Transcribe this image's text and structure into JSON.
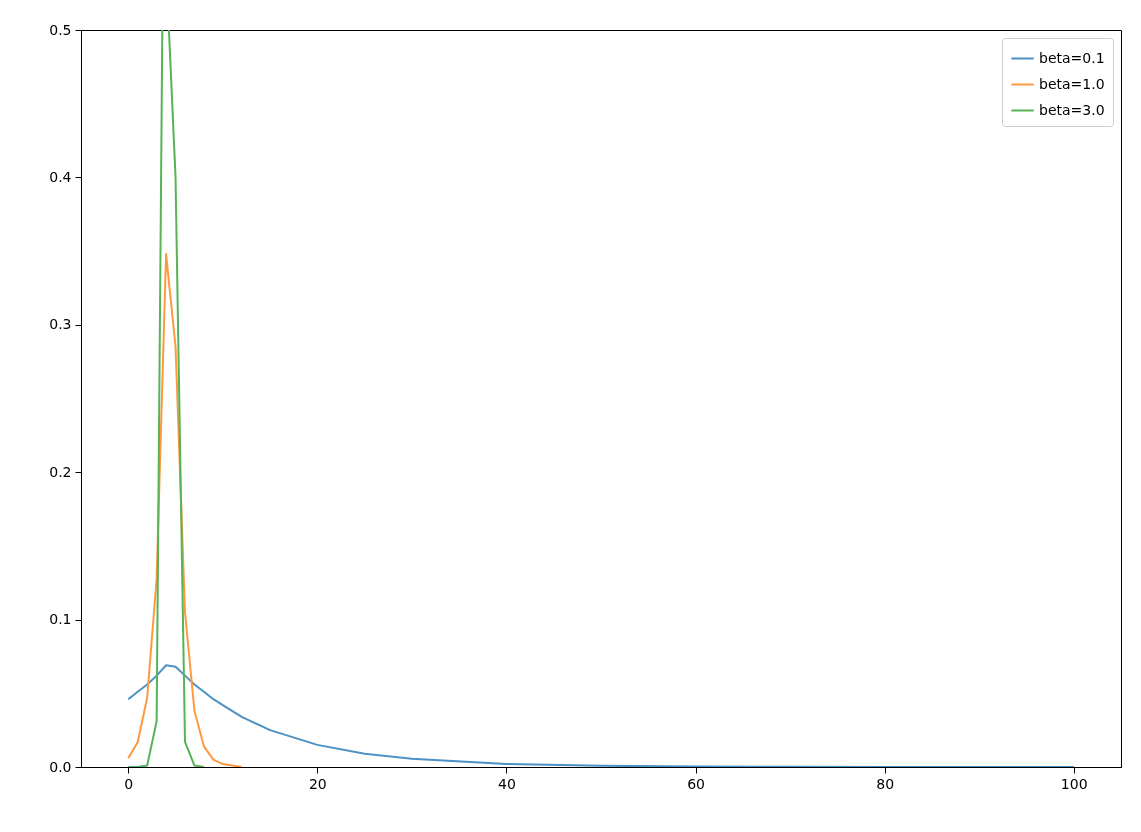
{
  "chart_data": {
    "type": "line",
    "x": [
      0,
      1,
      2,
      3,
      4,
      5,
      6,
      7,
      8,
      9,
      10,
      12,
      15,
      20,
      25,
      30,
      40,
      50,
      60,
      70,
      80,
      90,
      100
    ],
    "series": [
      {
        "name": "beta=0.1",
        "color": "#4c91c3",
        "values": [
          0.046,
          0.051,
          0.056,
          0.062,
          0.069,
          0.068,
          0.062,
          0.056,
          0.051,
          0.046,
          0.042,
          0.034,
          0.025,
          0.015,
          0.009,
          0.0056,
          0.002,
          0.0008,
          0.0003,
          0.0001,
          0,
          0,
          0
        ]
      },
      {
        "name": "beta=1.0",
        "color": "#ff993e",
        "x": [
          0,
          1,
          2,
          3,
          4,
          5,
          6,
          7,
          8,
          9,
          10,
          12
        ],
        "values": [
          0.006,
          0.017,
          0.047,
          0.128,
          0.348,
          0.285,
          0.105,
          0.038,
          0.014,
          0.005,
          0.002,
          0
        ]
      },
      {
        "name": "beta=3.0",
        "color": "#56b356",
        "x": [
          0,
          1,
          2,
          3,
          3.6,
          4,
          4.3,
          5,
          6,
          7,
          8
        ],
        "values": [
          0,
          0,
          0.001,
          0.031,
          0.5,
          null,
          0.5,
          0.4,
          0.017,
          0.001,
          0
        ]
      }
    ],
    "xlim": [
      -5,
      105
    ],
    "xticks": [
      0,
      20,
      40,
      60,
      80,
      100
    ],
    "ylim": [
      0,
      0.5
    ],
    "yticks": [
      {
        "value": 0,
        "label": "0.0"
      },
      0.1,
      0.2,
      0.3,
      0.4,
      0.5
    ],
    "grid": false,
    "legend": "top right"
  }
}
